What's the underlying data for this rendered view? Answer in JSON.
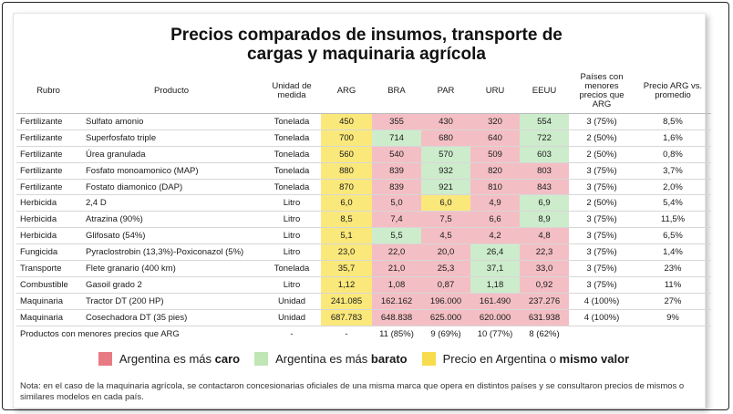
{
  "title_line1": "Precios comparados de insumos, transporte de",
  "title_line2": "cargas y maquinaria agrícola",
  "columns": [
    "Rubro",
    "Producto",
    "Unidad de medida",
    "ARG",
    "BRA",
    "PAR",
    "URU",
    "EEUU",
    "Países con menores precios que ARG",
    "Precio ARG vs. promedio"
  ],
  "rows": [
    {
      "rubro": "Fertilizante",
      "producto": "Sulfato amonio",
      "unidad": "Tonelada",
      "arg": "450",
      "bra": "355",
      "par": "430",
      "uru": "320",
      "eeuu": "554",
      "paises": "3 (75%)",
      "precio": "8,5%"
    },
    {
      "rubro": "Fertilizante",
      "producto": "Superfosfato triple",
      "unidad": "Tonelada",
      "arg": "700",
      "bra": "714",
      "par": "680",
      "uru": "640",
      "eeuu": "722",
      "paises": "2 (50%)",
      "precio": "1,6%"
    },
    {
      "rubro": "Fertilizante",
      "producto": "Úrea granulada",
      "unidad": "Tonelada",
      "arg": "560",
      "bra": "540",
      "par": "570",
      "uru": "509",
      "eeuu": "603",
      "paises": "2 (50%)",
      "precio": "0,8%"
    },
    {
      "rubro": "Fertilizante",
      "producto": "Fosfato monoamonico (MAP)",
      "unidad": "Tonelada",
      "arg": "880",
      "bra": "839",
      "par": "932",
      "uru": "820",
      "eeuu": "803",
      "paises": "3 (75%)",
      "precio": "3,7%"
    },
    {
      "rubro": "Fertilizante",
      "producto": "Fostato diamonico (DAP)",
      "unidad": "Tonelada",
      "arg": "870",
      "bra": "839",
      "par": "921",
      "uru": "810",
      "eeuu": "843",
      "paises": "3 (75%)",
      "precio": "2,0%"
    },
    {
      "rubro": "Herbicida",
      "producto": "2,4 D",
      "unidad": "Litro",
      "arg": "6,0",
      "bra": "5,0",
      "par": "6,0",
      "uru": "4,9",
      "eeuu": "6,9",
      "paises": "2 (50%)",
      "precio": "5,4%"
    },
    {
      "rubro": "Herbicida",
      "producto": "Atrazina (90%)",
      "unidad": "Litro",
      "arg": "8,5",
      "bra": "7,4",
      "par": "7,5",
      "uru": "6,6",
      "eeuu": "8,9",
      "paises": "3 (75%)",
      "precio": "11,5%"
    },
    {
      "rubro": "Herbicida",
      "producto": "Glifosato (54%)",
      "unidad": "Litro",
      "arg": "5,1",
      "bra": "5,5",
      "par": "4,5",
      "uru": "4,2",
      "eeuu": "4,8",
      "paises": "3 (75%)",
      "precio": "6,5%"
    },
    {
      "rubro": "Fungicida",
      "producto": "Pyraclostrobin (13,3%)-Poxiconazol (5%)",
      "unidad": "Litro",
      "arg": "23,0",
      "bra": "22,0",
      "par": "20,0",
      "uru": "26,4",
      "eeuu": "22,3",
      "paises": "3 (75%)",
      "precio": "1,4%"
    },
    {
      "rubro": "Transporte",
      "producto": "Flete granario (400 km)",
      "unidad": "Tonelada",
      "arg": "35,7",
      "bra": "21,0",
      "par": "25,3",
      "uru": "37,1",
      "eeuu": "33,0",
      "paises": "3 (75%)",
      "precio": "23%"
    },
    {
      "rubro": "Combustible",
      "producto": "Gasoil grado 2",
      "unidad": "Litro",
      "arg": "1,12",
      "bra": "1,08",
      "par": "0,87",
      "uru": "1,18",
      "eeuu": "0,92",
      "paises": "3 (75%)",
      "precio": "11%"
    },
    {
      "rubro": "Maquinaria",
      "producto": "Tractor DT (200 HP)",
      "unidad": "Unidad",
      "arg": "241.085",
      "bra": "162.162",
      "par": "196.000",
      "uru": "161.490",
      "eeuu": "237.276",
      "paises": "4 (100%)",
      "precio": "27%"
    },
    {
      "rubro": "Maquinaria",
      "producto": "Cosechadora DT (35 pies)",
      "unidad": "Unidad",
      "arg": "687.783",
      "bra": "648.838",
      "par": "625.000",
      "uru": "620.000",
      "eeuu": "631.938",
      "paises": "4 (100%)",
      "precio": "9%"
    }
  ],
  "cell_status": [
    [
      "caro",
      "caro",
      "caro",
      "barato"
    ],
    [
      "barato",
      "caro",
      "caro",
      "barato"
    ],
    [
      "caro",
      "barato",
      "caro",
      "barato"
    ],
    [
      "caro",
      "barato",
      "caro",
      "caro"
    ],
    [
      "caro",
      "barato",
      "caro",
      "caro"
    ],
    [
      "caro",
      "mismo",
      "caro",
      "barato"
    ],
    [
      "caro",
      "caro",
      "caro",
      "barato"
    ],
    [
      "barato",
      "caro",
      "caro",
      "caro"
    ],
    [
      "caro",
      "caro",
      "barato",
      "caro"
    ],
    [
      "caro",
      "caro",
      "barato",
      "caro"
    ],
    [
      "caro",
      "caro",
      "barato",
      "caro"
    ],
    [
      "caro",
      "caro",
      "caro",
      "caro"
    ],
    [
      "caro",
      "caro",
      "caro",
      "caro"
    ]
  ],
  "total_row": {
    "label": "Productos con menores precios que ARG",
    "unidad": "-",
    "arg": "-",
    "bra": "11 (85%)",
    "par": "9 (69%)",
    "uru": "10 (77%)",
    "eeuu": "8 (62%)"
  },
  "legend": [
    {
      "prefix": "Argentina es más ",
      "bold": "caro",
      "color": "#e87a84"
    },
    {
      "prefix": "Argentina es más ",
      "bold": "barato",
      "color": "#bfe6b4"
    },
    {
      "prefix": "Precio en Argentina o ",
      "bold": "mismo valor",
      "color": "#f7dc4e"
    }
  ],
  "note": "Nota: en el caso de la maquinaria agrícola, se contactaron concesionarias oficiales de una misma marca que opera en distintos países y se consultaron precios de mismos o similares modelos en cada país."
}
